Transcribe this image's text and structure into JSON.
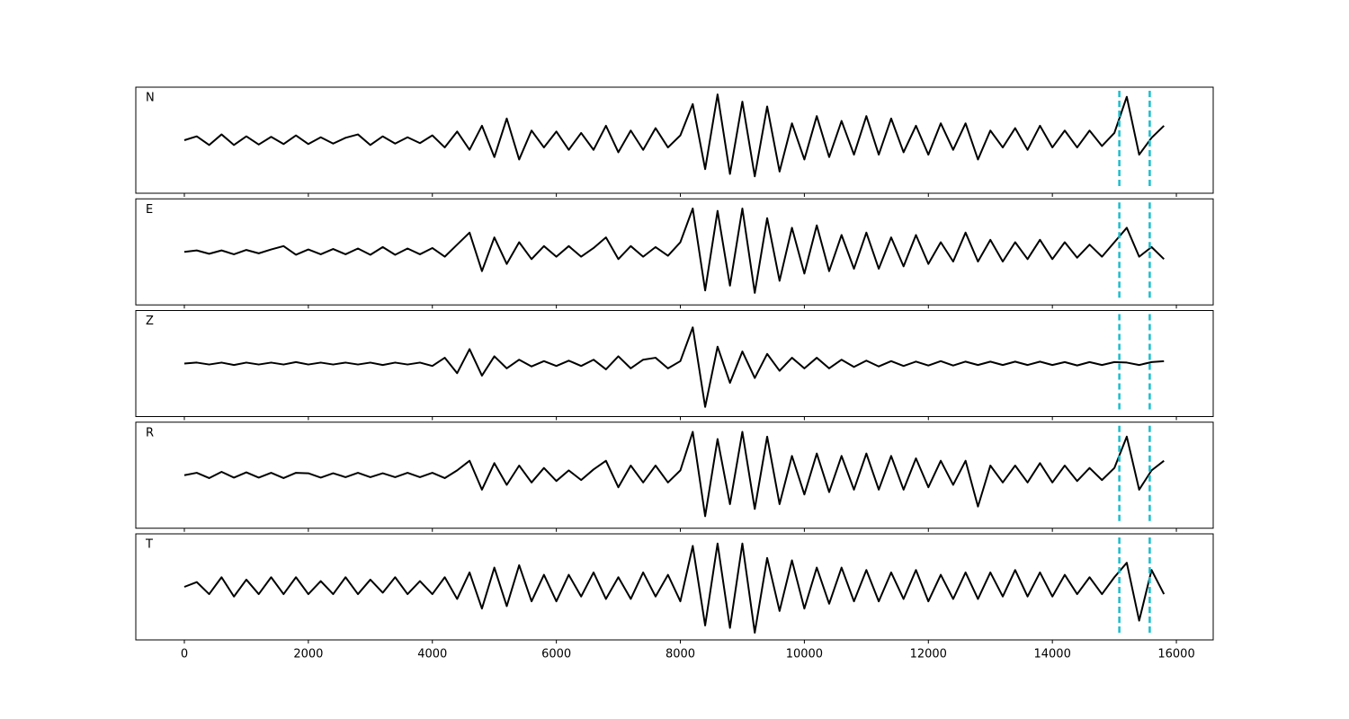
{
  "chart_data": {
    "type": "line",
    "subplots": true,
    "x": [
      0,
      200,
      400,
      600,
      800,
      1000,
      1200,
      1400,
      1600,
      1800,
      2000,
      2200,
      2400,
      2600,
      2800,
      3000,
      3200,
      3400,
      3600,
      3800,
      4000,
      4200,
      4400,
      4600,
      4800,
      5000,
      5200,
      5400,
      5600,
      5800,
      6000,
      6200,
      6400,
      6600,
      6800,
      7000,
      7200,
      7400,
      7600,
      7800,
      8000,
      8200,
      8400,
      8600,
      8800,
      9000,
      9200,
      9400,
      9600,
      9800,
      10000,
      10200,
      10400,
      10600,
      10800,
      11000,
      11200,
      11400,
      11600,
      11800,
      12000,
      12200,
      12400,
      12600,
      12800,
      13000,
      13200,
      13400,
      13600,
      13800,
      14000,
      14200,
      14400,
      14600,
      14800,
      15000,
      15200,
      15400,
      15600,
      15800
    ],
    "series": [
      {
        "name": "N",
        "color": "#000000",
        "values": [
          0,
          0.08,
          -0.1,
          0.12,
          -0.1,
          0.08,
          -0.09,
          0.07,
          -0.08,
          0.1,
          -0.08,
          0.06,
          -0.07,
          0.05,
          0.12,
          -0.1,
          0.08,
          -0.07,
          0.06,
          -0.06,
          0.1,
          -0.15,
          0.18,
          -0.2,
          0.3,
          -0.35,
          0.45,
          -0.4,
          0.2,
          -0.15,
          0.18,
          -0.2,
          0.15,
          -0.2,
          0.3,
          -0.25,
          0.2,
          -0.2,
          0.25,
          -0.15,
          0.1,
          0.75,
          -0.6,
          0.95,
          -0.7,
          0.8,
          -0.75,
          0.7,
          -0.65,
          0.35,
          -0.4,
          0.5,
          -0.35,
          0.4,
          -0.3,
          0.5,
          -0.3,
          0.45,
          -0.25,
          0.3,
          -0.3,
          0.35,
          -0.2,
          0.35,
          -0.4,
          0.2,
          -0.15,
          0.25,
          -0.2,
          0.3,
          -0.15,
          0.2,
          -0.15,
          0.2,
          -0.12,
          0.15,
          0.9,
          -0.3,
          0.05,
          0.3
        ]
      },
      {
        "name": "E",
        "color": "#000000",
        "values": [
          0,
          0.03,
          -0.04,
          0.03,
          -0.05,
          0.04,
          -0.03,
          0.05,
          0.12,
          -0.06,
          0.05,
          -0.05,
          0.06,
          -0.05,
          0.07,
          -0.06,
          0.1,
          -0.06,
          0.07,
          -0.05,
          0.08,
          -0.1,
          0.15,
          0.4,
          -0.4,
          0.3,
          -0.25,
          0.2,
          -0.15,
          0.12,
          -0.1,
          0.12,
          -0.1,
          0.08,
          0.3,
          -0.15,
          0.12,
          -0.1,
          0.1,
          -0.08,
          0.2,
          0.9,
          -0.8,
          0.85,
          -0.7,
          0.9,
          -0.85,
          0.7,
          -0.6,
          0.5,
          -0.45,
          0.55,
          -0.4,
          0.35,
          -0.35,
          0.4,
          -0.35,
          0.3,
          -0.3,
          0.35,
          -0.25,
          0.2,
          -0.2,
          0.4,
          -0.2,
          0.25,
          -0.2,
          0.2,
          -0.15,
          0.25,
          -0.15,
          0.2,
          -0.12,
          0.15,
          -0.1,
          0.2,
          0.5,
          -0.1,
          0.1,
          -0.15
        ]
      },
      {
        "name": "Z",
        "color": "#000000",
        "values": [
          0,
          0.02,
          -0.02,
          0.02,
          -0.03,
          0.02,
          -0.02,
          0.02,
          -0.02,
          0.03,
          -0.02,
          0.02,
          -0.02,
          0.02,
          -0.02,
          0.02,
          -0.03,
          0.02,
          -0.02,
          0.02,
          -0.05,
          0.12,
          -0.2,
          0.3,
          -0.25,
          0.15,
          -0.1,
          0.08,
          -0.06,
          0.05,
          -0.05,
          0.06,
          -0.05,
          0.08,
          -0.12,
          0.15,
          -0.1,
          0.08,
          0.12,
          -0.1,
          0.05,
          0.75,
          -0.9,
          0.35,
          -0.4,
          0.25,
          -0.3,
          0.2,
          -0.15,
          0.12,
          -0.1,
          0.12,
          -0.1,
          0.08,
          -0.07,
          0.06,
          -0.06,
          0.05,
          -0.05,
          0.04,
          -0.04,
          0.05,
          -0.04,
          0.04,
          -0.03,
          0.04,
          -0.03,
          0.04,
          -0.03,
          0.04,
          -0.03,
          0.03,
          -0.04,
          0.03,
          -0.03,
          0.03,
          0.02,
          -0.03,
          0.03,
          0.05
        ]
      },
      {
        "name": "R",
        "color": "#000000",
        "values": [
          0,
          0.05,
          -0.06,
          0.07,
          -0.05,
          0.06,
          -0.05,
          0.05,
          -0.06,
          0.05,
          0.04,
          -0.05,
          0.04,
          -0.04,
          0.05,
          -0.04,
          0.04,
          -0.04,
          0.05,
          -0.04,
          0.05,
          -0.06,
          0.1,
          0.3,
          -0.3,
          0.25,
          -0.2,
          0.2,
          -0.15,
          0.15,
          -0.12,
          0.1,
          -0.1,
          0.12,
          0.3,
          -0.25,
          0.2,
          -0.15,
          0.2,
          -0.15,
          0.1,
          0.9,
          -0.85,
          0.75,
          -0.6,
          0.9,
          -0.7,
          0.8,
          -0.6,
          0.4,
          -0.4,
          0.45,
          -0.35,
          0.4,
          -0.3,
          0.45,
          -0.3,
          0.4,
          -0.3,
          0.35,
          -0.25,
          0.3,
          -0.2,
          0.3,
          -0.65,
          0.2,
          -0.15,
          0.2,
          -0.15,
          0.25,
          -0.15,
          0.2,
          -0.12,
          0.15,
          -0.1,
          0.15,
          0.8,
          -0.3,
          0.1,
          0.3
        ]
      },
      {
        "name": "T",
        "color": "#000000",
        "values": [
          0,
          0.1,
          -0.15,
          0.2,
          -0.2,
          0.15,
          -0.15,
          0.2,
          -0.15,
          0.2,
          -0.15,
          0.12,
          -0.15,
          0.2,
          -0.15,
          0.15,
          -0.12,
          0.2,
          -0.15,
          0.12,
          -0.15,
          0.2,
          -0.25,
          0.3,
          -0.45,
          0.4,
          -0.4,
          0.45,
          -0.3,
          0.25,
          -0.3,
          0.25,
          -0.2,
          0.3,
          -0.25,
          0.2,
          -0.25,
          0.3,
          -0.2,
          0.25,
          -0.3,
          0.85,
          -0.8,
          0.9,
          -0.85,
          0.9,
          -0.95,
          0.6,
          -0.5,
          0.55,
          -0.45,
          0.4,
          -0.35,
          0.4,
          -0.3,
          0.35,
          -0.3,
          0.3,
          -0.25,
          0.35,
          -0.3,
          0.25,
          -0.25,
          0.3,
          -0.25,
          0.3,
          -0.2,
          0.35,
          -0.2,
          0.3,
          -0.2,
          0.25,
          -0.15,
          0.2,
          -0.15,
          0.2,
          0.5,
          -0.7,
          0.35,
          -0.15
        ]
      }
    ],
    "xlim": [
      -783,
      16594
    ],
    "xticks": [
      0,
      2000,
      4000,
      6000,
      8000,
      10000,
      12000,
      14000,
      16000
    ],
    "ylim": [
      -1.1,
      1.1
    ],
    "vlines": [
      15080,
      15570
    ],
    "vline_color": "#17becf"
  }
}
